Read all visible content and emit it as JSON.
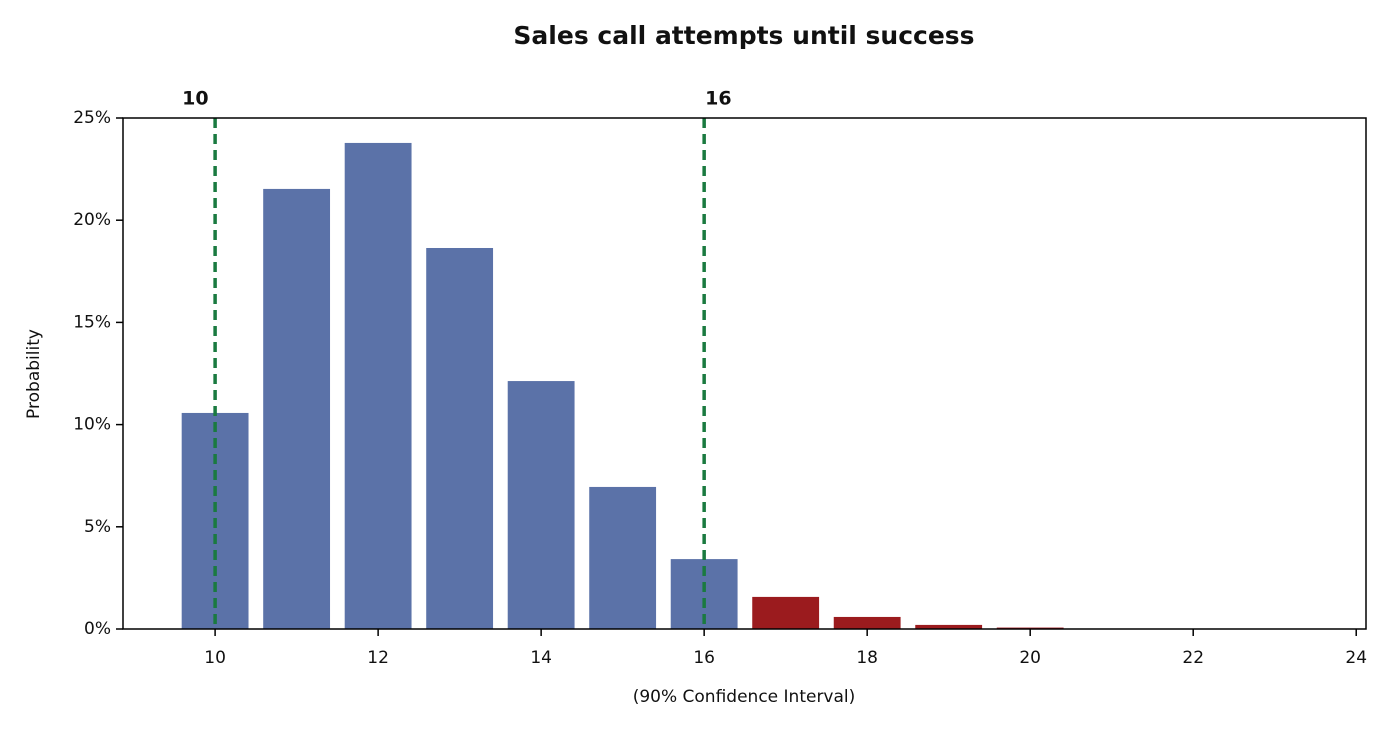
{
  "chart_data": {
    "type": "bar",
    "title": "Sales call attempts until success",
    "xlabel": "(90% Confidence Interval)",
    "ylabel": "Probability",
    "x": [
      10,
      11,
      12,
      13,
      14,
      15,
      16,
      17,
      18,
      19,
      20,
      21,
      22
    ],
    "values": [
      10.57,
      21.53,
      23.78,
      18.64,
      12.13,
      6.95,
      3.42,
      1.57,
      0.59,
      0.2,
      0.07,
      0.02,
      0.01
    ],
    "colors": [
      "#5b72a8",
      "#5b72a8",
      "#5b72a8",
      "#5b72a8",
      "#5b72a8",
      "#5b72a8",
      "#5b72a8",
      "#9b1b1e",
      "#9b1b1e",
      "#9b1b1e",
      "#9b1b1e",
      "#9b1b1e",
      "#9b1b1e"
    ],
    "xlim": [
      8.87,
      24.12
    ],
    "ylim": [
      0,
      25
    ],
    "xticks": [
      10,
      12,
      14,
      16,
      18,
      20,
      22,
      24
    ],
    "yticks": [
      {
        "value": 0,
        "label": "0%"
      },
      {
        "value": 5,
        "label": "5%"
      },
      {
        "value": 10,
        "label": "10%"
      },
      {
        "value": 15,
        "label": "15%"
      },
      {
        "value": 20,
        "label": "20%"
      },
      {
        "value": 25,
        "label": "25%"
      }
    ],
    "vlines": [
      10,
      16
    ],
    "vline_color": "#1a7a40"
  }
}
